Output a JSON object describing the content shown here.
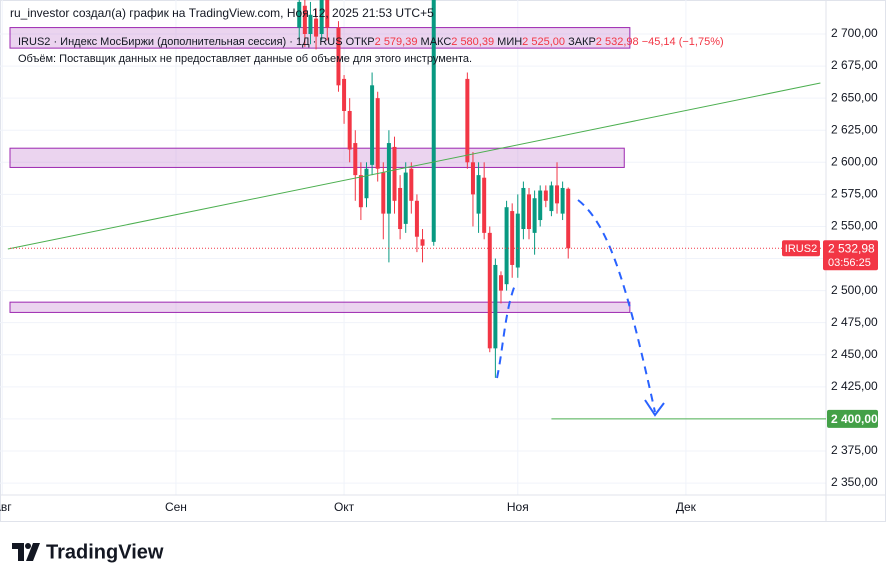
{
  "header": {
    "author_line": "ru_investor создал(а) график на TradingView.com, Ноя 12, 2025 21:53 UTC+5",
    "symbol_line": "IRUS2 · Индекс МосБиржи (дополнительная сессия) · 1Д · RUS",
    "open_label": "ОТКР",
    "open": "2 579,39",
    "high_label": "МАКС",
    "high": "2 580,39",
    "low_label": "МИН",
    "low": "2 525,00",
    "close_label": "ЗАКР",
    "close": "2 532,98",
    "change": "−45,14 (−1,75%)",
    "volume_note": "Объём: Поставщик данных не предоставляет данные об объеме для этого инструмента."
  },
  "chart_data": {
    "type": "candlestick",
    "symbol": "IRUS2",
    "x": [
      53,
      54,
      55,
      56,
      57,
      58,
      60,
      61,
      62,
      63,
      64,
      65,
      66,
      67,
      68,
      69,
      70,
      71,
      72,
      73,
      74,
      75,
      77,
      83,
      84,
      85,
      86,
      87,
      88,
      89,
      90,
      91,
      92,
      93,
      94,
      95,
      96,
      97,
      98,
      99,
      100,
      101
    ],
    "open": [
      2705,
      2722,
      2700,
      2712,
      2700,
      2728,
      2705,
      2665,
      2640,
      2615,
      2590,
      2572,
      2598,
      2650,
      2592,
      2560,
      2612,
      2580,
      2552,
      2595,
      2570,
      2540,
      2538,
      2665,
      2600,
      2560,
      2588,
      2545,
      2455,
      2512,
      2505,
      2562,
      2518,
      2548,
      2575,
      2545,
      2555,
      2578,
      2562,
      2582,
      2560,
      2579.39
    ],
    "high": [
      2730,
      2728,
      2725,
      2720,
      2740,
      2735,
      2710,
      2668,
      2650,
      2625,
      2600,
      2600,
      2670,
      2655,
      2600,
      2625,
      2620,
      2590,
      2600,
      2600,
      2575,
      2548,
      2740,
      2670,
      2608,
      2600,
      2600,
      2550,
      2525,
      2515,
      2570,
      2568,
      2575,
      2585,
      2580,
      2578,
      2582,
      2582,
      2585,
      2600,
      2585,
      2580.39
    ],
    "low": [
      2695,
      2690,
      2692,
      2688,
      2695,
      2695,
      2655,
      2630,
      2600,
      2570,
      2555,
      2565,
      2590,
      2585,
      2540,
      2522,
      2560,
      2540,
      2545,
      2560,
      2530,
      2522,
      2535,
      2595,
      2550,
      2545,
      2540,
      2452,
      2432,
      2490,
      2500,
      2510,
      2510,
      2540,
      2540,
      2528,
      2550,
      2565,
      2558,
      2560,
      2555,
      2525
    ],
    "close": [
      2725,
      2700,
      2715,
      2698,
      2730,
      2705,
      2660,
      2640,
      2610,
      2590,
      2565,
      2595,
      2660,
      2595,
      2560,
      2615,
      2570,
      2548,
      2592,
      2570,
      2542,
      2535,
      2730,
      2600,
      2575,
      2590,
      2545,
      2455,
      2520,
      2500,
      2565,
      2520,
      2560,
      2580,
      2548,
      2572,
      2578,
      2570,
      2582,
      2568,
      2580,
      2532.98
    ],
    "up_color": "#089981",
    "down_color": "#f23645",
    "xlim": [
      -0.4,
      147
    ],
    "xticks": [
      {
        "value": 0,
        "label": "Авг"
      },
      {
        "value": 31,
        "label": "Сен"
      },
      {
        "value": 61,
        "label": "Окт"
      },
      {
        "value": 92,
        "label": "Ноя"
      },
      {
        "value": 122,
        "label": "Дек"
      }
    ],
    "ylim": [
      2340.7,
      2726.5
    ],
    "yticks": [
      {
        "value": 2350,
        "label": "2 350,00"
      },
      {
        "value": 2375,
        "label": "2 375,00"
      },
      {
        "value": 2400,
        "label": "2 400,00"
      },
      {
        "value": 2425,
        "label": "2 425,00"
      },
      {
        "value": 2450,
        "label": "2 450,00"
      },
      {
        "value": 2475,
        "label": "2 475,00"
      },
      {
        "value": 2500,
        "label": "2 500,00"
      },
      {
        "value": 2525,
        "label": "2 525,00"
      },
      {
        "value": 2550,
        "label": "2 550,00"
      },
      {
        "value": 2575,
        "label": "2 575,00"
      },
      {
        "value": 2600,
        "label": "2 600,00"
      },
      {
        "value": 2625,
        "label": "2 625,00"
      },
      {
        "value": 2650,
        "label": "2 650,00"
      },
      {
        "value": 2675,
        "label": "2 675,00"
      },
      {
        "value": 2700,
        "label": "2 700,00"
      }
    ],
    "grid": true,
    "last_price": {
      "value": 2532.98,
      "label": "2 532,98"
    },
    "countdown": "03:56:25",
    "zones": [
      {
        "from": 2689,
        "to": 2705,
        "x_end": 112
      },
      {
        "from": 2596,
        "to": 2611,
        "x_end": 111
      },
      {
        "from": 2483,
        "to": 2491,
        "x_end": 112
      }
    ],
    "trendline": {
      "x": [
        1,
        146
      ],
      "y": [
        2532.4,
        2661.8
      ]
    },
    "target": {
      "value": 2400,
      "label": "2 400,00",
      "x_start": 98
    }
  },
  "footer": {
    "brand": "TradingView"
  }
}
